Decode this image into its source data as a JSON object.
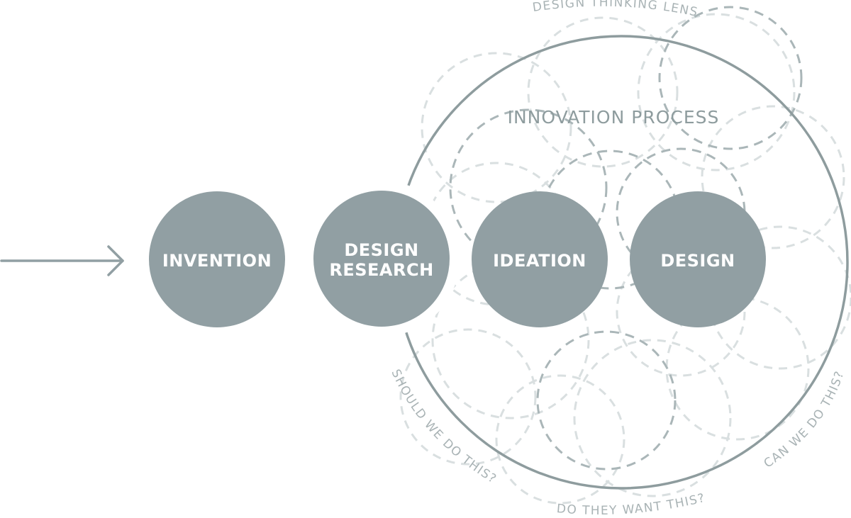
{
  "colors": {
    "node_fill": "#919fa3",
    "lens_stroke": "#8e9c9e",
    "dashed_light": "#d9dfe0",
    "dashed_dark": "#aab6b8",
    "text_muted": "#a9b3b5"
  },
  "icons": {
    "entry_arrow": "arrow-right-icon"
  },
  "diagram": {
    "lens_title": "DESIGN THINKING LENS",
    "process_title": "INNOVATION PROCESS",
    "questions": {
      "should": "SHOULD WE DO THIS?",
      "want": "DO THEY WANT THIS?",
      "can": "CAN WE DO THIS?"
    },
    "nodes": [
      {
        "line1": "INVENTION",
        "line2": ""
      },
      {
        "line1": "DESIGN",
        "line2": "RESEARCH"
      },
      {
        "line1": "IDEATION",
        "line2": ""
      },
      {
        "line1": "DESIGN",
        "line2": ""
      }
    ]
  }
}
